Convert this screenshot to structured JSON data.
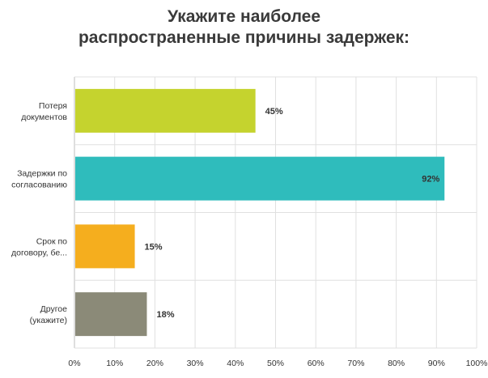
{
  "chart_data": {
    "type": "bar",
    "orientation": "horizontal",
    "title_lines": [
      "Укажите наиболее",
      "распространенные причины задержек:"
    ],
    "categories": [
      [
        "Потеря",
        "документов"
      ],
      [
        "Задержки по",
        "согласованию"
      ],
      [
        "Срок по",
        "договору, бе..."
      ],
      [
        "Другое",
        "(укажите)"
      ]
    ],
    "values": [
      45,
      92,
      15,
      18
    ],
    "data_labels": [
      "45%",
      "92%",
      "15%",
      "18%"
    ],
    "colors": [
      "#c5d32e",
      "#2fbcbc",
      "#f5ae1e",
      "#8b8a78"
    ],
    "xlim": [
      0,
      100
    ],
    "x_ticks": [
      0,
      10,
      20,
      30,
      40,
      50,
      60,
      70,
      80,
      90,
      100
    ],
    "x_tick_labels": [
      "0%",
      "10%",
      "20%",
      "30%",
      "40%",
      "50%",
      "60%",
      "70%",
      "80%",
      "90%",
      "100%"
    ],
    "grid": true,
    "xlabel": "",
    "ylabel": ""
  }
}
